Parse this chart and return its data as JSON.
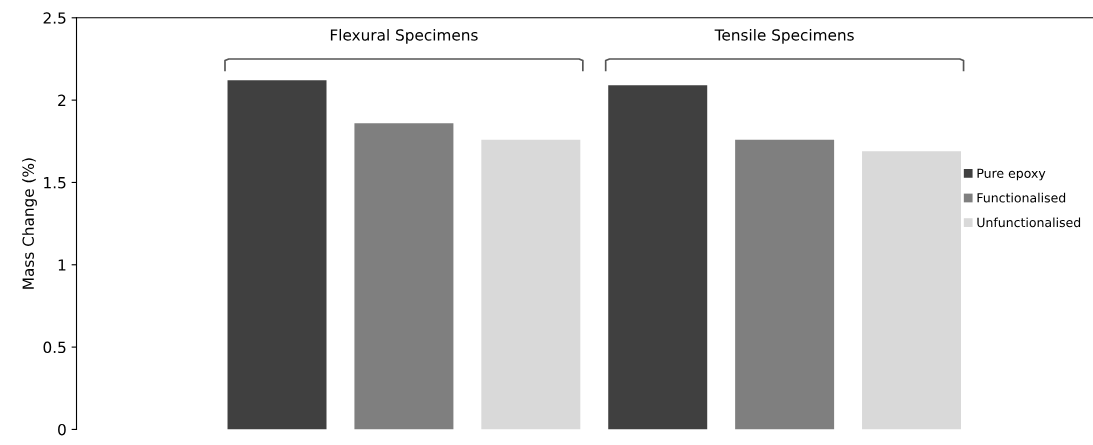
{
  "chart_data": {
    "type": "bar",
    "ylabel": "Mass Change (%)",
    "categories": [
      "Flexural Specimens",
      "Tensile Specimens"
    ],
    "series": [
      {
        "name": "Pure epoxy",
        "color": "#404040",
        "values": [
          2.12,
          2.09
        ]
      },
      {
        "name": "Functionalised",
        "color": "#7f7f7f",
        "values": [
          1.86,
          1.76
        ]
      },
      {
        "name": "Unfunctionalised",
        "color": "#d9d9d9",
        "values": [
          1.76,
          1.69
        ]
      }
    ],
    "ylim": [
      0,
      2.5
    ],
    "yticks": [
      0,
      0.5,
      1,
      1.5,
      2,
      2.5
    ],
    "tick_labels": "y",
    "grid": false,
    "legend": "right"
  }
}
